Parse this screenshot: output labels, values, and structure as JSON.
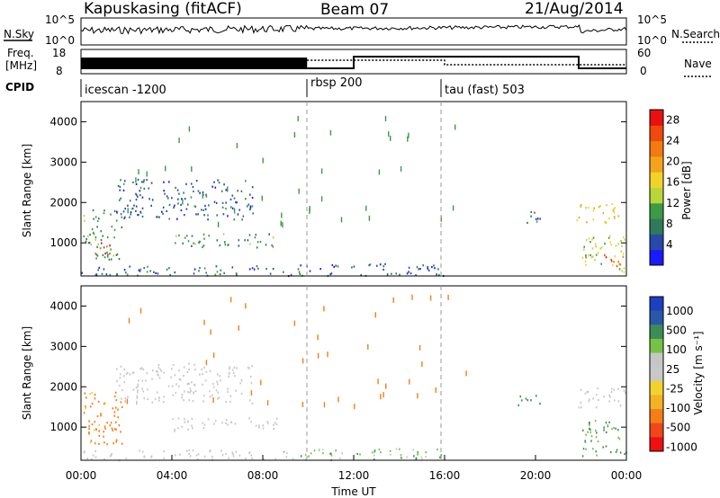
{
  "header": {
    "station": "Kapuskasing (fitACF)",
    "beam": "Beam 07",
    "date": "21/Aug/2014"
  },
  "labels": {
    "nsky": "N.Sky",
    "freq_line1": "Freq.",
    "freq_line2": "[MHz]",
    "cpid": "CPID",
    "nsearch": "N.Search",
    "nave": "Nave",
    "nsky_ticks": [
      "10^5",
      "10^0"
    ],
    "nsearch_ticks": [
      "10^5",
      "10^0"
    ],
    "freq_ticks": [
      "18",
      "8"
    ],
    "nave_ticks": [
      "60",
      "0"
    ],
    "x_title": "Time UT"
  },
  "cpid_segments": [
    {
      "name": "icescan -1200",
      "start_h": 0,
      "end_h": 9.95
    },
    {
      "name": "rbsp 200",
      "start_h": 9.95,
      "end_h": 16.0
    },
    {
      "name": "tau (fast) 503",
      "start_h": 16.0,
      "end_h": 24
    }
  ],
  "colors": {
    "power_scale": [
      "#1a1aff",
      "#2a48a8",
      "#2f7a5a",
      "#3c9a44",
      "#b8d63a",
      "#f0d32a",
      "#f5a31b",
      "#f27a10",
      "#ee4a0c",
      "#e8110f"
    ],
    "velocity_scale": [
      "#ee1010",
      "#f0461a",
      "#f47d18",
      "#f3b221",
      "#f2d22e",
      "#c8c8c8",
      "#c6c6c6",
      "#76c244",
      "#3d8c56",
      "#2a58a8",
      "#1d3fc2"
    ]
  },
  "chart_data": [
    {
      "type": "heatmap",
      "title": "",
      "ylabel": "Slant Range [km]",
      "xlabel": "",
      "x_ticks": [
        "00:00",
        "04:00",
        "08:00",
        "12:00",
        "16:00",
        "20:00",
        "00:00"
      ],
      "y_ticks": [
        "1000",
        "2000",
        "3000",
        "4000"
      ],
      "xlim_h": [
        0,
        24
      ],
      "ylim_km": [
        180,
        4500
      ],
      "colorbar": {
        "label": "Power [dB]",
        "ticks": [
          "4",
          "8",
          "12",
          "16",
          "20",
          "24",
          "28"
        ],
        "range": [
          0,
          30
        ]
      },
      "scatter_regions": [
        {
          "t0": 0.1,
          "t1": 1.8,
          "r0": 600,
          "r1": 1900,
          "value": 10
        },
        {
          "t0": 0.6,
          "t1": 1.5,
          "r0": 750,
          "r1": 1050,
          "value": 27
        },
        {
          "t0": 0.0,
          "t1": 9.3,
          "r0": 200,
          "r1": 450,
          "value": 6
        },
        {
          "t0": 4.0,
          "t1": 8.7,
          "r0": 900,
          "r1": 1250,
          "value": 9
        },
        {
          "t0": 9.5,
          "t1": 16.0,
          "r0": 200,
          "r1": 500,
          "value": 5
        },
        {
          "t0": 1.5,
          "t1": 7.6,
          "r0": 1600,
          "r1": 2600,
          "value": 6
        },
        {
          "t0": 19.2,
          "t1": 20.2,
          "r0": 1500,
          "r1": 1800,
          "value": 6
        },
        {
          "t0": 21.8,
          "t1": 23.9,
          "r0": 1500,
          "r1": 2000,
          "value": 18
        },
        {
          "t0": 22.0,
          "t1": 24.0,
          "r0": 300,
          "r1": 1200,
          "value": 14
        },
        {
          "t0": 23.0,
          "t1": 24.0,
          "r0": 400,
          "r1": 800,
          "value": 25
        }
      ]
    },
    {
      "type": "heatmap",
      "title": "",
      "ylabel": "Slant Range [km]",
      "xlabel": "Time UT",
      "x_ticks": [
        "00:00",
        "04:00",
        "08:00",
        "12:00",
        "16:00",
        "20:00",
        "00:00"
      ],
      "y_ticks": [
        "1000",
        "2000",
        "3000",
        "4000"
      ],
      "xlim_h": [
        0,
        24
      ],
      "ylim_km": [
        180,
        4500
      ],
      "colorbar": {
        "label": "Velocity [m s⁻¹]",
        "ticks": [
          "1000",
          "500",
          "100",
          "25",
          "-25",
          "-100",
          "-500",
          "-1000"
        ],
        "range": [
          -1000,
          1000
        ]
      },
      "scatter_regions": [
        {
          "t0": 0.1,
          "t1": 1.8,
          "r0": 600,
          "r1": 1900,
          "value": -150
        },
        {
          "t0": 0.6,
          "t1": 1.6,
          "r0": 600,
          "r1": 1000,
          "value": -300
        },
        {
          "t0": 0.0,
          "t1": 9.3,
          "r0": 200,
          "r1": 450,
          "value": 0
        },
        {
          "t0": 4.0,
          "t1": 8.7,
          "r0": 900,
          "r1": 1250,
          "value": 0
        },
        {
          "t0": 9.5,
          "t1": 16.0,
          "r0": 200,
          "r1": 500,
          "value": 60
        },
        {
          "t0": 1.5,
          "t1": 7.6,
          "r0": 1600,
          "r1": 2600,
          "value": 0
        },
        {
          "t0": 19.2,
          "t1": 20.2,
          "r0": 1500,
          "r1": 1800,
          "value": 200
        },
        {
          "t0": 21.8,
          "t1": 24.0,
          "r0": 1500,
          "r1": 2000,
          "value": 0
        },
        {
          "t0": 22.0,
          "t1": 24.0,
          "r0": 300,
          "r1": 1200,
          "value": 120
        }
      ]
    }
  ]
}
